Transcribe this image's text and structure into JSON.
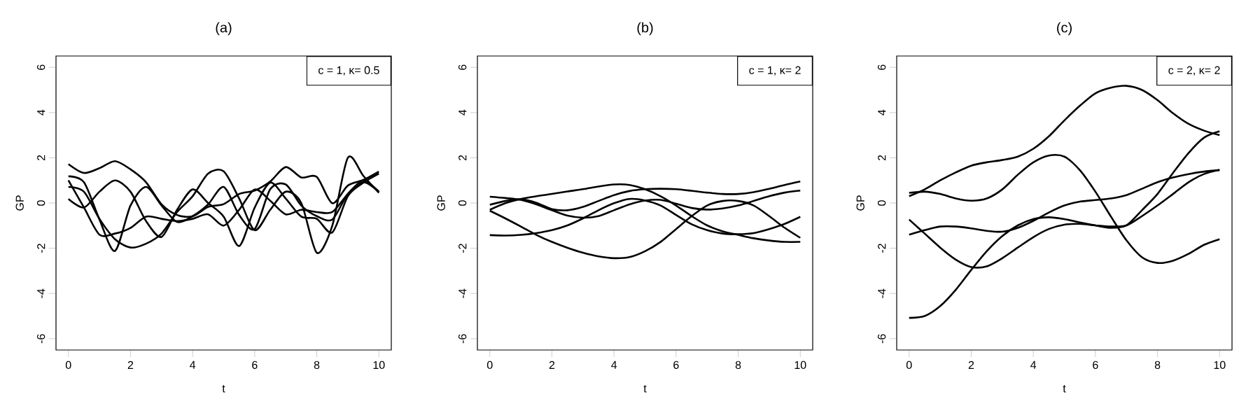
{
  "chart_data": [
    {
      "type": "line",
      "title": "(a)",
      "xlabel": "t",
      "ylabel": "GP",
      "annotations": [
        "c = 1, κ= 0.5"
      ],
      "x": [
        0,
        0.5,
        1,
        1.5,
        2,
        2.5,
        3,
        3.5,
        4,
        4.5,
        5,
        5.5,
        6,
        6.5,
        7,
        7.5,
        8,
        8.5,
        9,
        9.5,
        10
      ],
      "xlim": [
        -0.4,
        10.4
      ],
      "ylim": [
        -6.5,
        6.5
      ],
      "xticks": [
        0,
        2,
        4,
        6,
        8,
        10
      ],
      "yticks": [
        -6,
        -4,
        -2,
        0,
        2,
        4,
        6
      ],
      "series": [
        {
          "color": "#000000",
          "values": [
            1.72,
            1.33,
            1.54,
            1.85,
            1.49,
            0.92,
            -0.06,
            -0.53,
            -0.59,
            -0.17,
            -0.05,
            0.4,
            0.55,
            0.95,
            1.59,
            1.13,
            1.15,
            -0.01,
            0.77,
            1.02,
            1.39
          ]
        },
        {
          "color": "#000000",
          "values": [
            1.18,
            0.92,
            -0.73,
            -2.12,
            -0.11,
            0.71,
            -0.11,
            -0.84,
            -0.58,
            -0.06,
            0.71,
            -0.53,
            -1.15,
            0.61,
            0.82,
            -0.11,
            -0.58,
            -0.73,
            0.4,
            0.92,
            0.5
          ]
        },
        {
          "color": "#000000",
          "values": [
            0.71,
            0.5,
            -0.7,
            -1.6,
            -1.97,
            -1.8,
            -1.35,
            -0.4,
            0.3,
            1.3,
            1.4,
            0.2,
            -1.2,
            -0.3,
            0.5,
            0.0,
            -2.2,
            -1.0,
            2.0,
            1.2,
            0.45
          ]
        },
        {
          "color": "#000000",
          "values": [
            0.18,
            -0.2,
            0.5,
            1.0,
            0.5,
            -0.8,
            -1.5,
            -0.3,
            0.6,
            0.0,
            -0.6,
            -1.9,
            -0.2,
            0.9,
            0.2,
            -0.6,
            -0.7,
            -1.3,
            0.3,
            0.9,
            1.3
          ]
        },
        {
          "color": "#000000",
          "values": [
            1.0,
            -0.2,
            -1.4,
            -1.35,
            -1.1,
            -0.6,
            -0.7,
            -0.8,
            -0.7,
            -0.5,
            -1.0,
            -0.3,
            0.6,
            0.1,
            -0.5,
            -0.3,
            -0.4,
            -0.4,
            0.4,
            1.0,
            0.5
          ]
        }
      ]
    },
    {
      "type": "line",
      "title": "(b)",
      "xlabel": "t",
      "ylabel": "GP",
      "annotations": [
        "c = 1, κ= 2"
      ],
      "x": [
        0,
        0.5,
        1,
        1.5,
        2,
        2.5,
        3,
        3.5,
        4,
        4.5,
        5,
        5.5,
        6,
        6.5,
        7,
        7.5,
        8,
        8.5,
        9,
        9.5,
        10
      ],
      "xlim": [
        -0.4,
        10.4
      ],
      "ylim": [
        -6.5,
        6.5
      ],
      "xticks": [
        0,
        2,
        4,
        6,
        8,
        10
      ],
      "yticks": [
        -6,
        -4,
        -2,
        0,
        2,
        4,
        6
      ],
      "series": [
        {
          "color": "#000000",
          "values": [
            0.28,
            0.22,
            0.14,
            -0.06,
            -0.32,
            -0.56,
            -0.65,
            -0.58,
            -0.32,
            -0.06,
            0.11,
            0.14,
            -0.03,
            -0.22,
            -0.29,
            -0.24,
            -0.11,
            0.09,
            0.3,
            0.46,
            0.55
          ]
        },
        {
          "color": "#000000",
          "values": [
            -0.08,
            0.09,
            0.17,
            0.01,
            -0.27,
            -0.32,
            -0.17,
            0.09,
            0.35,
            0.53,
            0.61,
            0.63,
            0.61,
            0.54,
            0.46,
            0.4,
            0.4,
            0.48,
            0.63,
            0.8,
            0.95
          ]
        },
        {
          "color": "#000000",
          "values": [
            -0.3,
            -0.01,
            0.18,
            0.3,
            0.4,
            0.51,
            0.61,
            0.73,
            0.82,
            0.8,
            0.61,
            0.3,
            -0.11,
            -0.58,
            -0.99,
            -1.25,
            -1.41,
            -1.56,
            -1.66,
            -1.72,
            -1.72
          ]
        },
        {
          "color": "#000000",
          "values": [
            -0.34,
            -0.68,
            -1.04,
            -1.41,
            -1.72,
            -1.98,
            -2.2,
            -2.36,
            -2.44,
            -2.39,
            -2.13,
            -1.72,
            -1.15,
            -0.58,
            -0.11,
            0.09,
            0.09,
            -0.11,
            -0.58,
            -1.1,
            -1.54
          ]
        },
        {
          "color": "#000000",
          "values": [
            -1.42,
            -1.44,
            -1.41,
            -1.33,
            -1.2,
            -0.99,
            -0.68,
            -0.32,
            -0.01,
            0.18,
            0.11,
            -0.11,
            -0.53,
            -0.94,
            -1.2,
            -1.35,
            -1.38,
            -1.33,
            -1.15,
            -0.92,
            -0.61
          ]
        }
      ]
    },
    {
      "type": "line",
      "title": "(c)",
      "xlabel": "t",
      "ylabel": "GP",
      "annotations": [
        "c = 2, κ= 2"
      ],
      "x": [
        0,
        0.5,
        1,
        1.5,
        2,
        2.5,
        3,
        3.5,
        4,
        4.5,
        5,
        5.5,
        6,
        6.5,
        7,
        7.5,
        8,
        8.5,
        9,
        9.5,
        10
      ],
      "xlim": [
        -0.4,
        10.4
      ],
      "ylim": [
        -6.5,
        6.5
      ],
      "xticks": [
        0,
        2,
        4,
        6,
        8,
        10
      ],
      "yticks": [
        -6,
        -4,
        -2,
        0,
        2,
        4,
        6
      ],
      "series": [
        {
          "color": "#000000",
          "values": [
            0.3,
            0.6,
            1.0,
            1.35,
            1.65,
            1.8,
            1.9,
            2.05,
            2.4,
            2.95,
            3.65,
            4.3,
            4.85,
            5.1,
            5.18,
            5.0,
            4.55,
            3.97,
            3.5,
            3.2,
            3.0
          ]
        },
        {
          "color": "#000000",
          "values": [
            0.45,
            0.5,
            0.4,
            0.2,
            0.1,
            0.2,
            0.6,
            1.25,
            1.8,
            2.1,
            2.05,
            1.45,
            0.5,
            -0.6,
            -1.65,
            -2.4,
            -2.65,
            -2.55,
            -2.25,
            -1.85,
            -1.6
          ]
        },
        {
          "color": "#000000",
          "values": [
            -0.73,
            -1.35,
            -1.97,
            -2.5,
            -2.83,
            -2.8,
            -2.44,
            -1.97,
            -1.51,
            -1.15,
            -0.96,
            -0.92,
            -0.99,
            -1.04,
            -0.99,
            -0.58,
            -0.11,
            0.4,
            0.92,
            1.28,
            1.46
          ]
        },
        {
          "color": "#000000",
          "values": [
            -1.4,
            -1.2,
            -1.04,
            -1.04,
            -1.12,
            -1.23,
            -1.27,
            -1.1,
            -0.79,
            -0.42,
            -0.11,
            0.06,
            0.13,
            0.2,
            0.35,
            0.63,
            0.92,
            1.13,
            1.28,
            1.39,
            1.46
          ]
        },
        {
          "color": "#000000",
          "values": [
            -5.08,
            -5.0,
            -4.56,
            -3.84,
            -2.96,
            -2.13,
            -1.46,
            -0.99,
            -0.71,
            -0.63,
            -0.71,
            -0.86,
            -0.99,
            -1.1,
            -0.99,
            -0.32,
            0.4,
            1.33,
            2.21,
            2.89,
            3.17
          ]
        }
      ]
    }
  ]
}
